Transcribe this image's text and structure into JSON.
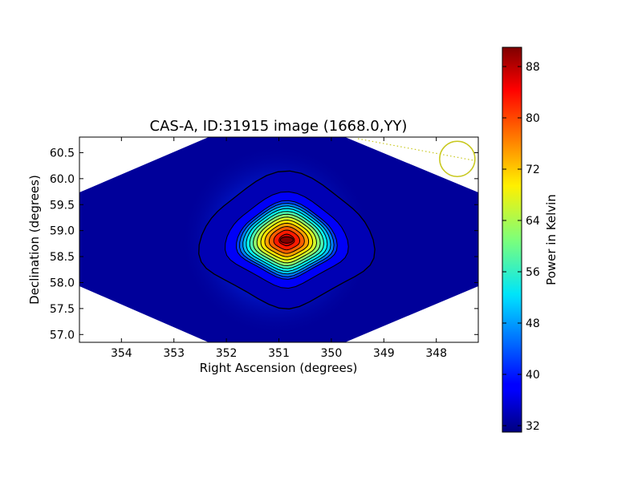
{
  "chart_data": {
    "type": "heatmap",
    "title": "CAS-A, ID:31915 image (1668.0,YY)",
    "xlabel": "Right Ascension (degrees)",
    "ylabel": "Declination (degrees)",
    "x_ticks": [
      "354",
      "353",
      "352",
      "351",
      "350",
      "349",
      "348"
    ],
    "y_ticks": [
      "57.0",
      "57.5",
      "58.0",
      "58.5",
      "59.0",
      "59.5",
      "60.0",
      "60.5"
    ],
    "xlim": [
      354.8,
      347.2
    ],
    "ylim": [
      56.85,
      60.8
    ],
    "x_reversed": true,
    "peak": {
      "ra": 350.85,
      "dec": 58.82,
      "value": 90
    },
    "background_value": 32,
    "colormap": "jet",
    "contours": true,
    "beam_marker": {
      "ra": 347.6,
      "dec": 60.38,
      "color": "#c8c81e"
    },
    "colorbar": {
      "label": "Power in Kelvin",
      "ticks": [
        "32",
        "40",
        "48",
        "56",
        "64",
        "72",
        "80",
        "88"
      ],
      "range": [
        31,
        91
      ]
    }
  }
}
